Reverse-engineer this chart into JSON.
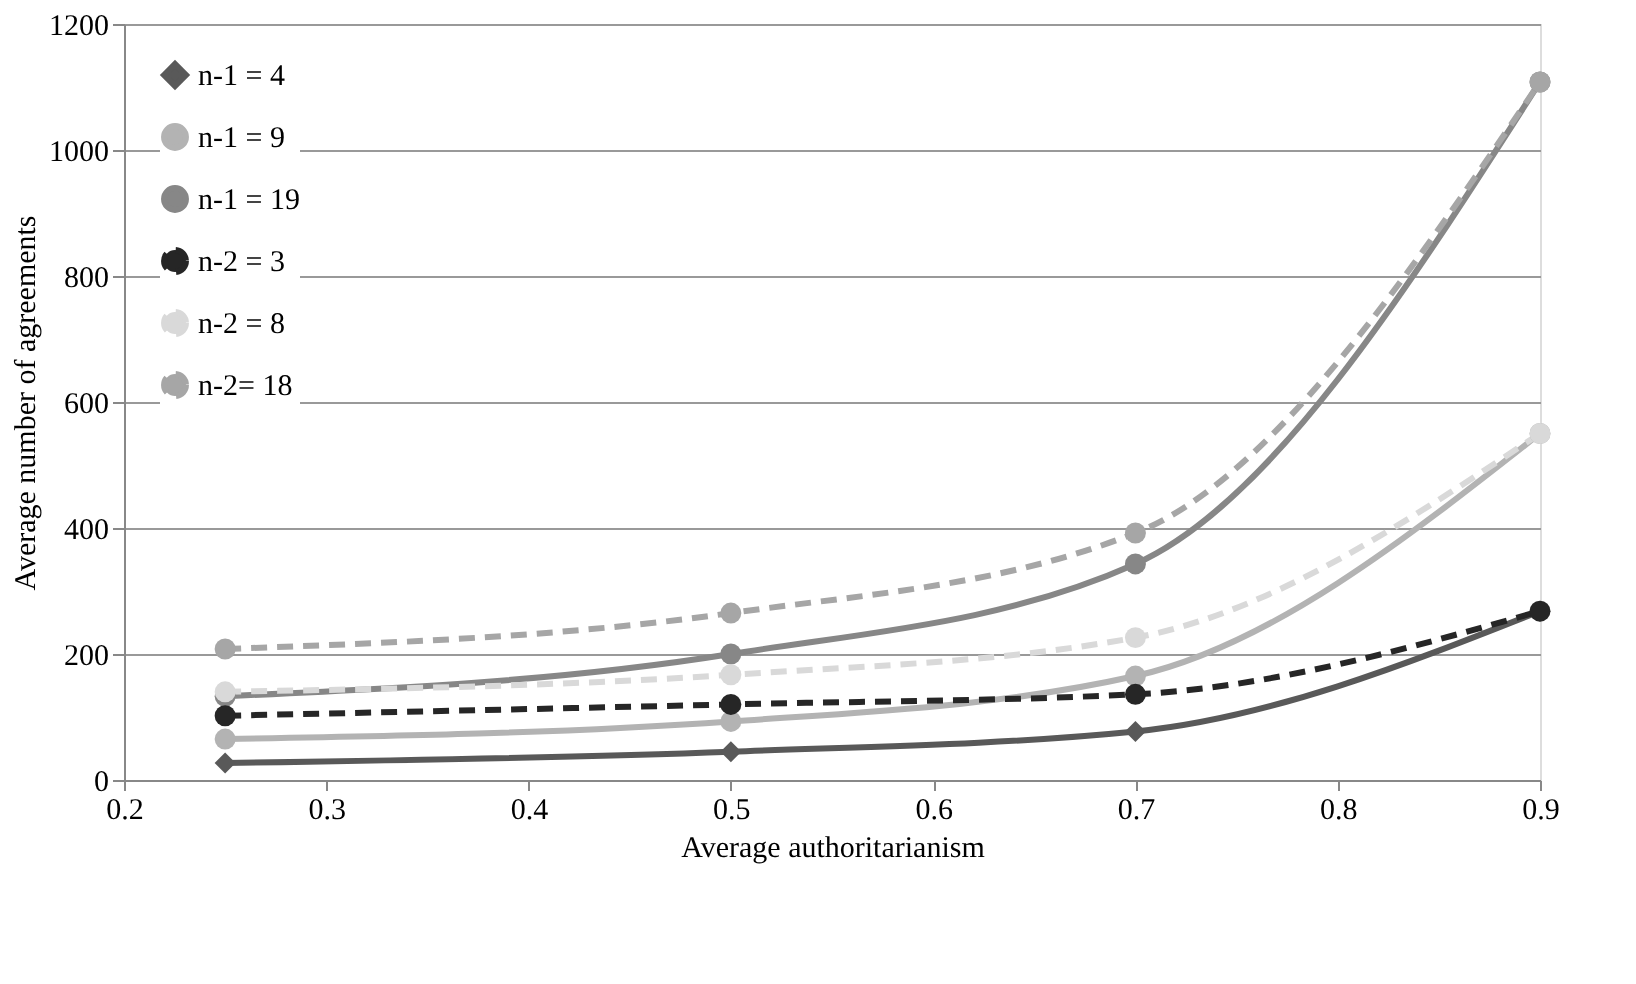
{
  "chart_data": {
    "type": "line",
    "xlabel": "Average authoritarianism",
    "ylabel": "Average number of agreements",
    "x": [
      0.25,
      0.5,
      0.7,
      0.9
    ],
    "series": [
      {
        "name": "n-1 = 4",
        "color": "#595959",
        "marker": "diamond",
        "line_style": "solid",
        "values": [
          27,
          45,
          77,
          268
        ]
      },
      {
        "name": "n-1 = 9",
        "color": "#b3b3b3",
        "marker": "circle",
        "line_style": "solid",
        "values": [
          65,
          93,
          165,
          550
        ]
      },
      {
        "name": "n-1 = 19",
        "color": "#878787",
        "marker": "circle",
        "line_style": "solid",
        "values": [
          133,
          200,
          343,
          1108
        ]
      },
      {
        "name": "n-2 = 3",
        "color": "#262626",
        "marker": "circle",
        "line_style": "dashed",
        "values": [
          102,
          120,
          136,
          268
        ]
      },
      {
        "name": "n-2 = 8",
        "color": "#d9d9d9",
        "marker": "circle",
        "line_style": "dashed",
        "values": [
          140,
          167,
          226,
          550
        ]
      },
      {
        "name": "n-2= 18",
        "color": "#a6a6a6",
        "marker": "circle",
        "line_style": "dashed",
        "values": [
          208,
          265,
          392,
          1108
        ]
      }
    ],
    "xlim": [
      0.2,
      0.9
    ],
    "xticks": [
      0.2,
      0.3,
      0.4,
      0.5,
      0.6,
      0.7,
      0.8,
      0.9
    ],
    "ylim": [
      0,
      1200
    ],
    "yticks": [
      0,
      200,
      400,
      600,
      800,
      1000,
      1200
    ],
    "grid": "y",
    "legend": "top left"
  }
}
